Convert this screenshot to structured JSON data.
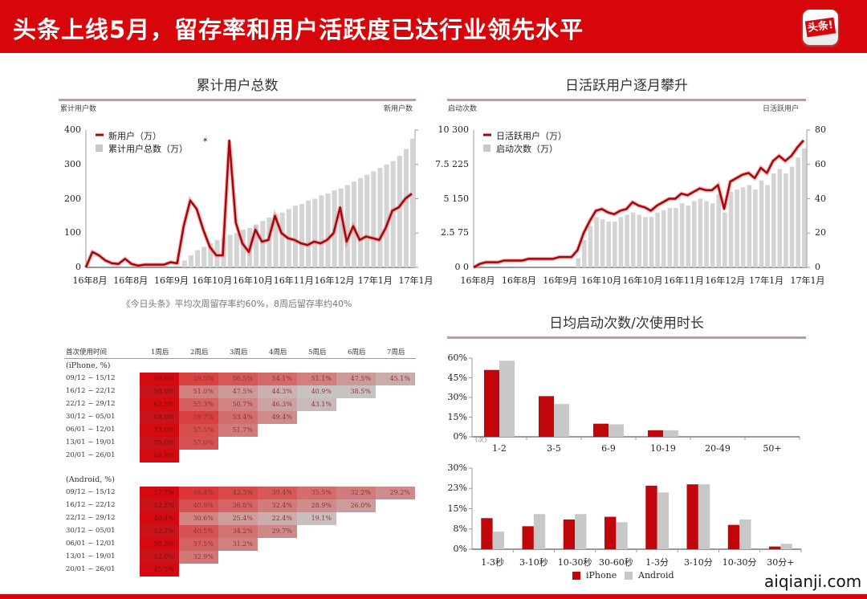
{
  "header": {
    "title": "头条上线5月，留存率和用户活跃度已达行业领先水平",
    "logo_text": "头条!"
  },
  "colors": {
    "brand": "#d7060a",
    "line": "#b5080d",
    "bar_gray": "#c8c8c8"
  },
  "chart_data": [
    {
      "type": "line+bar",
      "title": "累计用户总数",
      "ylabel_left": "累计用户数",
      "ylabel_right": "新用户数",
      "ylim": [
        0,
        400
      ],
      "yticks": [
        "0",
        "100",
        "200",
        "300",
        "400"
      ],
      "xticks": [
        "16年8月",
        "16年8月",
        "16年9月",
        "16年10月",
        "16年10月",
        "16年11月",
        "16年12月",
        "17年1月",
        "17年1月"
      ],
      "legend": [
        "新用户（万）",
        "累计用户总数（万）"
      ],
      "annotation": "*",
      "series": [
        {
          "name": "新用户（万）",
          "kind": "line",
          "values": [
            0,
            45,
            35,
            20,
            12,
            10,
            25,
            10,
            5,
            8,
            8,
            8,
            8,
            15,
            12,
            120,
            195,
            170,
            110,
            60,
            35,
            35,
            370,
            130,
            70,
            45,
            110,
            75,
            80,
            150,
            100,
            85,
            80,
            70,
            65,
            75,
            70,
            80,
            100,
            175,
            75,
            120,
            80,
            90,
            85,
            80,
            115,
            165,
            175,
            200,
            215
          ]
        },
        {
          "name": "累计用户总数（万）",
          "kind": "bar",
          "values": [
            0,
            0,
            0,
            0,
            0,
            0,
            0,
            0,
            0,
            0,
            0,
            0,
            0,
            0,
            0,
            20,
            35,
            50,
            60,
            70,
            80,
            85,
            95,
            100,
            110,
            115,
            125,
            135,
            145,
            155,
            160,
            170,
            180,
            185,
            195,
            200,
            210,
            215,
            225,
            230,
            240,
            250,
            260,
            270,
            280,
            290,
            300,
            310,
            325,
            345,
            375
          ]
        }
      ],
      "caption": "《今日头条》平均次周留存率约60%，8周后留存率约40%"
    },
    {
      "type": "line+bar",
      "title": "日活跃用户逐月攀升",
      "ylabel_left": "启动次数",
      "ylabel_right": "日活跃用户",
      "yticks_left": [
        "0   0",
        "2.5  75",
        "5 150",
        "7.5 225",
        "10 300"
      ],
      "ylim_left": [
        0,
        300
      ],
      "yticks_right": [
        "0",
        "20",
        "40",
        "60",
        "80"
      ],
      "ylim_right": [
        0,
        80
      ],
      "xticks": [
        "16年8月",
        "16年8月",
        "16年9月",
        "16年10月",
        "16年10月",
        "16年11月",
        "16年12月",
        "17年1月",
        "17年1月"
      ],
      "legend": [
        "日活跃用户（万）",
        "启动次数（万）"
      ],
      "series": [
        {
          "name": "日活跃用户（万）",
          "kind": "line",
          "axis": "right",
          "values": [
            0,
            2,
            3,
            3,
            3,
            4,
            4,
            4,
            4,
            5,
            5,
            5,
            5,
            5,
            6,
            6,
            6,
            10,
            20,
            27,
            33,
            34,
            32,
            31,
            33,
            34,
            38,
            36,
            35,
            33,
            36,
            38,
            40,
            40,
            43,
            42,
            44,
            46,
            45,
            45,
            48,
            34,
            50,
            52,
            54,
            55,
            52,
            58,
            55,
            62,
            65,
            62,
            65,
            70,
            74
          ]
        },
        {
          "name": "启动次数（万）",
          "kind": "bar",
          "axis": "left",
          "values": [
            0,
            0,
            0,
            0,
            0,
            0,
            0,
            0,
            0,
            0,
            0,
            0,
            0,
            0,
            0,
            0,
            0,
            20,
            60,
            90,
            110,
            105,
            100,
            100,
            110,
            115,
            120,
            115,
            110,
            110,
            120,
            125,
            130,
            130,
            140,
            135,
            145,
            150,
            145,
            140,
            160,
            120,
            165,
            170,
            175,
            180,
            170,
            190,
            180,
            205,
            215,
            205,
            220,
            240,
            260
          ]
        }
      ]
    },
    {
      "type": "table",
      "headers": [
        "首次使用时间",
        "1周后",
        "2周后",
        "3周后",
        "4周后",
        "5周后",
        "6周后",
        "7周后"
      ],
      "groups": [
        {
          "label": "(iPhone, %)",
          "rows": [
            {
              "date": "09/12 ~ 15/12",
              "values": [
                "69.6%",
                "59.5%",
                "56.5%",
                "54.1%",
                "51.1%",
                "47.5%",
                "45.1%"
              ]
            },
            {
              "date": "16/12 ~ 22/12",
              "values": [
                "58.0%",
                "51.0%",
                "47.5%",
                "44.3%",
                "40.9%",
                "38.5%"
              ]
            },
            {
              "date": "22/12 ~ 29/12",
              "values": [
                "62.5%",
                "55.3%",
                "50.7%",
                "46.3%",
                "43.1%"
              ]
            },
            {
              "date": "30/12 ~ 05/01",
              "values": [
                "68.6%",
                "59.7%",
                "53.4%",
                "49.4%"
              ]
            },
            {
              "date": "06/01 ~ 12/01",
              "values": [
                "73.0%",
                "57.5%",
                "51.7%"
              ]
            },
            {
              "date": "13/01 ~ 19/01",
              "values": [
                "70.0%",
                "57.0%"
              ]
            },
            {
              "date": "20/01 ~ 26/01",
              "values": [
                "68.8%"
              ]
            }
          ]
        },
        {
          "label": "(Android, %)",
          "rows": [
            {
              "date": "09/12 ~ 15/12",
              "values": [
                "57.7%",
                "46.4%",
                "42.3%",
                "39.4%",
                "35.5%",
                "32.2%",
                "29.2%"
              ]
            },
            {
              "date": "16/12 ~ 22/12",
              "values": [
                "52.2%",
                "40.9%",
                "36.8%",
                "32.4%",
                "28.9%",
                "26.0%"
              ]
            },
            {
              "date": "22/12 ~ 29/12",
              "values": [
                "40.4%",
                "30.6%",
                "25.4%",
                "22.4%",
                "19.1%"
              ]
            },
            {
              "date": "30/12 ~ 05/01",
              "values": [
                "52.7%",
                "40.5%",
                "34.2%",
                "29.7%"
              ]
            },
            {
              "date": "06/01 ~ 12/01",
              "values": [
                "50.8%",
                "37.5%",
                "31.2%"
              ]
            },
            {
              "date": "13/01 ~ 19/01",
              "values": [
                "52.0%",
                "32.9%"
              ]
            },
            {
              "date": "20/01 ~ 26/01",
              "values": [
                "45.5%"
              ]
            }
          ]
        }
      ]
    },
    {
      "type": "bar",
      "title": "日均启动次数/次使用时长",
      "unit": "(次)",
      "categories": [
        "1-2",
        "3-5",
        "6-9",
        "10-19",
        "20-49",
        "50+"
      ],
      "ylim": [
        0,
        60
      ],
      "yticks": [
        "0%",
        "15%",
        "30%",
        "45%",
        "60%"
      ],
      "series": [
        {
          "name": "iPhone",
          "values": [
            51,
            31,
            10,
            5,
            0,
            0
          ]
        },
        {
          "name": "Android",
          "values": [
            58,
            25,
            9.5,
            5,
            0,
            0
          ]
        }
      ]
    },
    {
      "type": "bar",
      "categories": [
        "1-3秒",
        "3-10秒",
        "10-30秒",
        "30-60秒",
        "1-3分",
        "3-10分",
        "10-30分",
        "30分+"
      ],
      "ylim": [
        0,
        30
      ],
      "yticks": [
        "0%",
        "8%",
        "15%",
        "23%",
        "30%"
      ],
      "series": [
        {
          "name": "iPhone",
          "values": [
            11.5,
            8.5,
            11,
            12,
            23.5,
            24,
            9,
            1
          ]
        },
        {
          "name": "Android",
          "values": [
            6.5,
            13,
            13,
            10,
            21,
            24,
            11,
            2
          ]
        }
      ],
      "legend": [
        "iPhone",
        "Android"
      ]
    }
  ],
  "watermark": "aiqianji.com"
}
